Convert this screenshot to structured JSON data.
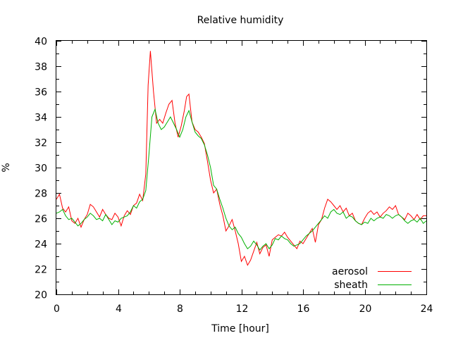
{
  "chart_data": {
    "type": "line",
    "title": "Relative humidity",
    "xlabel": "Time [hour]",
    "ylabel": "%",
    "xlim": [
      0,
      24
    ],
    "ylim": [
      20,
      40
    ],
    "xticks": [
      "0",
      "4",
      "8",
      "12",
      "16",
      "20",
      "24"
    ],
    "yticks": [
      "20",
      "22",
      "24",
      "26",
      "28",
      "30",
      "32",
      "34",
      "36",
      "38",
      "40"
    ],
    "legend_position": "bottom-right",
    "grid": false,
    "series": [
      {
        "name": "aerosol",
        "color": "#ff0000",
        "x": [
          0,
          0.2,
          0.4,
          0.6,
          0.8,
          1.0,
          1.2,
          1.4,
          1.6,
          1.8,
          2.0,
          2.2,
          2.4,
          2.6,
          2.8,
          3.0,
          3.2,
          3.4,
          3.6,
          3.8,
          4.0,
          4.2,
          4.4,
          4.6,
          4.8,
          5.0,
          5.2,
          5.4,
          5.6,
          5.8,
          5.95,
          6.1,
          6.3,
          6.5,
          6.7,
          6.9,
          7.1,
          7.3,
          7.5,
          7.7,
          7.9,
          8.1,
          8.3,
          8.45,
          8.6,
          8.8,
          9.0,
          9.2,
          9.4,
          9.6,
          9.8,
          10.0,
          10.2,
          10.4,
          10.6,
          10.8,
          11.0,
          11.2,
          11.4,
          11.6,
          11.8,
          12.0,
          12.2,
          12.4,
          12.6,
          12.8,
          13.0,
          13.2,
          13.4,
          13.6,
          13.8,
          14.0,
          14.2,
          14.4,
          14.6,
          14.8,
          15.0,
          15.2,
          15.4,
          15.6,
          15.8,
          16.0,
          16.2,
          16.4,
          16.6,
          16.8,
          17.0,
          17.2,
          17.4,
          17.6,
          17.8,
          18.0,
          18.2,
          18.4,
          18.6,
          18.8,
          19.0,
          19.2,
          19.4,
          19.6,
          19.8,
          20.0,
          20.2,
          20.4,
          20.6,
          20.8,
          21.0,
          21.2,
          21.4,
          21.6,
          21.8,
          22.0,
          22.2,
          22.4,
          22.6,
          22.8,
          23.0,
          23.2,
          23.4,
          23.6,
          23.8,
          24.0
        ],
        "y": [
          27.5,
          27.9,
          26.8,
          26.5,
          26.9,
          25.8,
          25.6,
          26.0,
          25.3,
          25.9,
          26.3,
          27.1,
          26.9,
          26.5,
          26.1,
          26.7,
          26.3,
          26.0,
          25.9,
          26.4,
          26.1,
          25.4,
          26.2,
          26.6,
          26.3,
          27.0,
          27.2,
          27.9,
          27.4,
          29.5,
          36.5,
          39.2,
          36.0,
          33.5,
          33.8,
          33.5,
          34.3,
          35.0,
          35.3,
          33.5,
          32.4,
          33.3,
          34.5,
          35.6,
          35.8,
          33.6,
          33.0,
          32.8,
          32.4,
          31.9,
          30.5,
          29.0,
          28.0,
          28.3,
          27.1,
          26.2,
          25.0,
          25.4,
          25.9,
          25.0,
          24.0,
          22.6,
          23.0,
          22.3,
          22.7,
          23.4,
          24.1,
          23.2,
          23.7,
          23.9,
          23.0,
          24.3,
          24.5,
          24.7,
          24.6,
          24.9,
          24.5,
          24.2,
          23.9,
          23.6,
          24.2,
          24.0,
          24.4,
          24.8,
          25.2,
          24.1,
          25.5,
          25.9,
          26.8,
          27.5,
          27.3,
          27.0,
          26.7,
          27.0,
          26.5,
          26.8,
          26.2,
          26.4,
          25.8,
          25.6,
          25.5,
          26.0,
          26.4,
          26.6,
          26.3,
          26.5,
          26.1,
          26.4,
          26.6,
          26.9,
          26.7,
          27.0,
          26.3,
          26.1,
          25.9,
          26.4,
          26.2,
          25.9,
          26.3,
          25.9,
          26.2,
          26.2
        ]
      },
      {
        "name": "sheath",
        "color": "#00b000",
        "x": [
          0,
          0.2,
          0.4,
          0.6,
          0.8,
          1.0,
          1.2,
          1.4,
          1.6,
          1.8,
          2.0,
          2.2,
          2.4,
          2.6,
          2.8,
          3.0,
          3.2,
          3.4,
          3.6,
          3.8,
          4.0,
          4.2,
          4.4,
          4.6,
          4.8,
          5.0,
          5.2,
          5.4,
          5.6,
          5.8,
          6.0,
          6.2,
          6.4,
          6.6,
          6.8,
          7.0,
          7.2,
          7.4,
          7.6,
          7.8,
          8.0,
          8.2,
          8.4,
          8.6,
          8.8,
          9.0,
          9.2,
          9.4,
          9.6,
          9.8,
          10.0,
          10.2,
          10.4,
          10.6,
          10.8,
          11.0,
          11.2,
          11.4,
          11.6,
          11.8,
          12.0,
          12.2,
          12.4,
          12.6,
          12.8,
          13.0,
          13.2,
          13.4,
          13.6,
          13.8,
          14.0,
          14.2,
          14.4,
          14.6,
          14.8,
          15.0,
          15.2,
          15.4,
          15.6,
          15.8,
          16.0,
          16.2,
          16.4,
          16.6,
          16.8,
          17.0,
          17.2,
          17.4,
          17.6,
          17.8,
          18.0,
          18.2,
          18.4,
          18.6,
          18.8,
          19.0,
          19.2,
          19.4,
          19.6,
          19.8,
          20.0,
          20.2,
          20.4,
          20.6,
          20.8,
          21.0,
          21.2,
          21.4,
          21.6,
          21.8,
          22.0,
          22.2,
          22.4,
          22.6,
          22.8,
          23.0,
          23.2,
          23.4,
          23.6,
          23.8,
          24.0
        ],
        "y": [
          26.4,
          26.5,
          26.7,
          26.2,
          25.9,
          26.0,
          25.7,
          25.4,
          25.6,
          25.9,
          26.1,
          26.4,
          26.2,
          25.9,
          26.0,
          25.8,
          26.3,
          25.9,
          25.5,
          25.8,
          25.7,
          26.0,
          26.1,
          26.2,
          26.5,
          27.0,
          26.8,
          27.3,
          27.5,
          28.2,
          31.0,
          34.0,
          34.6,
          33.5,
          33.0,
          33.2,
          33.6,
          34.0,
          33.5,
          33.0,
          32.4,
          33.0,
          34.0,
          34.5,
          33.6,
          32.8,
          32.5,
          32.3,
          31.8,
          31.0,
          30.0,
          28.6,
          28.3,
          27.5,
          26.8,
          26.0,
          25.4,
          25.1,
          25.3,
          24.8,
          24.5,
          24.0,
          23.6,
          23.8,
          24.2,
          23.9,
          23.5,
          23.8,
          24.0,
          23.6,
          23.9,
          24.4,
          24.3,
          24.6,
          24.4,
          24.3,
          24.0,
          23.8,
          23.9,
          24.0,
          24.3,
          24.6,
          24.8,
          25.0,
          25.3,
          25.6,
          25.9,
          26.2,
          26.0,
          26.5,
          26.7,
          26.4,
          26.3,
          26.5,
          26.0,
          26.2,
          26.1,
          25.8,
          25.6,
          25.5,
          25.7,
          25.6,
          26.0,
          25.8,
          26.0,
          26.1,
          26.0,
          26.3,
          26.2,
          26.0,
          26.2,
          26.3,
          26.1,
          25.8,
          25.6,
          25.8,
          25.9,
          25.7,
          26.0,
          25.6,
          25.8
        ]
      }
    ]
  }
}
